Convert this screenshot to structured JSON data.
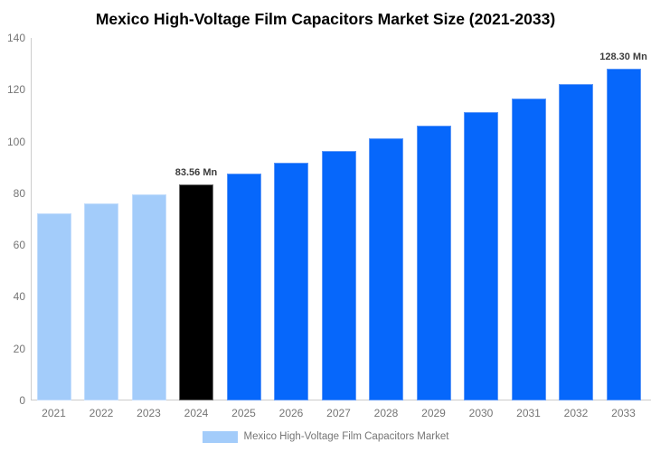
{
  "chart_data": {
    "type": "bar",
    "title": "Mexico High-Voltage Film Capacitors Market Size (2021-2033)",
    "categories": [
      "2021",
      "2022",
      "2023",
      "2024",
      "2025",
      "2026",
      "2027",
      "2028",
      "2029",
      "2030",
      "2031",
      "2032",
      "2033"
    ],
    "values": [
      72.43,
      75.97,
      79.67,
      83.56,
      87.64,
      91.92,
      96.41,
      101.11,
      106.05,
      111.22,
      116.65,
      122.35,
      128.3
    ],
    "unit": "Mn",
    "bar_colors": [
      "#A3CCFA",
      "#A3CCFA",
      "#A3CCFA",
      "#000000",
      "#0667FB",
      "#0667FB",
      "#0667FB",
      "#0667FB",
      "#0667FB",
      "#0667FB",
      "#0667FB",
      "#0667FB",
      "#0667FB"
    ],
    "annotations": [
      {
        "category": "2024",
        "text": "83.56 Mn"
      },
      {
        "category": "2033",
        "text": "128.30 Mn"
      }
    ],
    "ylim": [
      0,
      140
    ],
    "yticks": [
      0,
      20,
      40,
      60,
      80,
      100,
      120,
      140
    ],
    "xlabel": "",
    "ylabel": "",
    "grid": false,
    "legend_position": "bottom"
  },
  "legend": {
    "label": "Mexico High-Voltage Film Capacitors Market",
    "swatch_color": "#A3CCFA"
  },
  "colors": {
    "historical_bar": "#A3CCFA",
    "base_year_bar": "#000000",
    "forecast_bar": "#0667FB",
    "historical_bar_border": "#C3DDFC",
    "base_year_bar_border": "#6F6F6F",
    "forecast_bar_border": "#5B96F7",
    "axis_line": "#CCCCCC",
    "tick_label": "#757575",
    "annotation_text": "#3C3C3C",
    "title_text": "#000000",
    "background": "#FFFFFF"
  }
}
